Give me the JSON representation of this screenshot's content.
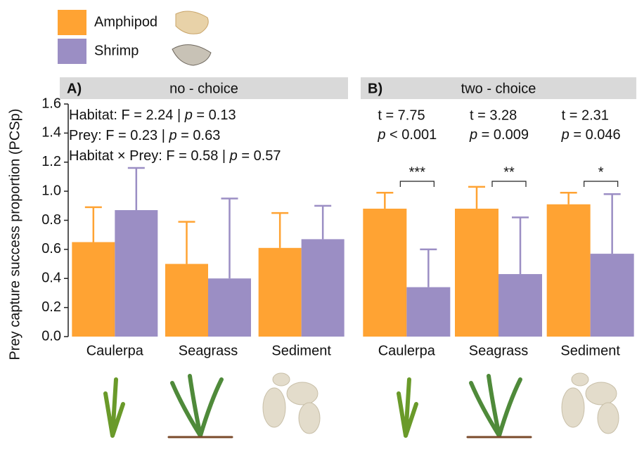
{
  "chart_data": [
    {
      "type": "bar",
      "panel_label": "A)",
      "title": "no - choice",
      "y_label": "Prey capture success proportion (PCSp)",
      "categories": [
        "Caulerpa",
        "Seagrass",
        "Sediment"
      ],
      "series": [
        {
          "name": "Amphipod",
          "color": "#ffa333",
          "values": [
            0.65,
            0.5,
            0.61
          ],
          "errors": [
            0.24,
            0.29,
            0.24
          ]
        },
        {
          "name": "Shrimp",
          "color": "#9b8ec4",
          "values": [
            0.87,
            0.4,
            0.67
          ],
          "errors": [
            0.29,
            0.55,
            0.23
          ]
        }
      ],
      "ylim": [
        0,
        1.6
      ],
      "yticks": [
        {
          "value": 0,
          "label": "0.0"
        },
        0.2,
        0.4,
        0.6,
        0.8,
        {
          "value": 1,
          "label": "1.0"
        },
        1.2,
        1.4,
        1.6
      ],
      "annotations": [
        [
          "Habitat: F = 2.24 | ",
          "p",
          " = 0.13"
        ],
        [
          "Prey: F = 0.23 | ",
          "p",
          " = 0.63"
        ],
        [
          "Habitat × Prey: F = 0.58 | ",
          "p",
          " = 0.57"
        ]
      ]
    },
    {
      "type": "bar",
      "panel_label": "B)",
      "title": "two - choice",
      "categories": [
        "Caulerpa",
        "Seagrass",
        "Sediment"
      ],
      "series": [
        {
          "color": "#ffa333",
          "values": [
            0.88,
            0.88,
            0.91
          ],
          "errors": [
            0.11,
            0.15,
            0.08
          ]
        },
        {
          "color": "#9b8ec4",
          "values": [
            0.34,
            0.43,
            0.57
          ],
          "errors": [
            0.26,
            0.39,
            0.41
          ]
        }
      ],
      "ylim": [
        0,
        1.6
      ],
      "tests": [
        {
          "t": "t = 7.75",
          "p": [
            "p",
            " < 0.001"
          ],
          "significance": "***"
        },
        {
          "t": "t = 3.28",
          "p": [
            "p",
            " = 0.009"
          ],
          "significance": "**"
        },
        {
          "t": "t = 2.31",
          "p": [
            "p",
            " = 0.046"
          ],
          "significance": "*"
        }
      ]
    }
  ]
}
